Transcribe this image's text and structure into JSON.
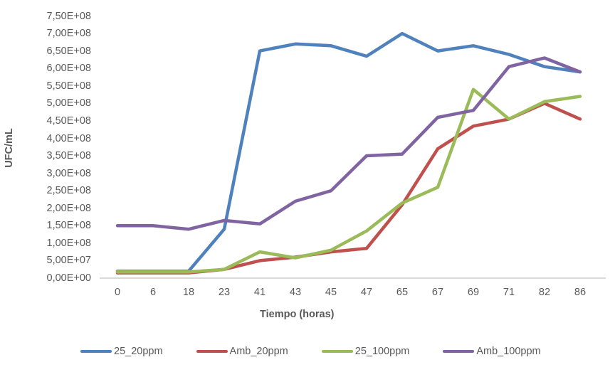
{
  "chart_data": {
    "type": "line",
    "title": "",
    "xlabel": "Tiempo (horas)",
    "ylabel": "UFC/mL",
    "ylim": [
      0,
      750000000
    ],
    "y_tick_step": 50000000,
    "grid": false,
    "legend_position": "bottom",
    "axis_line_color": "#D9D9D9",
    "text_color": "#595959",
    "categories": [
      "0",
      "6",
      "18",
      "23",
      "41",
      "43",
      "45",
      "47",
      "65",
      "67",
      "69",
      "71",
      "82",
      "86"
    ],
    "y_tick_labels_top_to_bottom": [
      "7,50E+08",
      "7,00E+08",
      "6,50E+08",
      "6,00E+08",
      "5,50E+08",
      "5,00E+08",
      "4,50E+08",
      "4,00E+08",
      "3,50E+08",
      "3,00E+08",
      "2,50E+08",
      "2,00E+08",
      "1,50E+08",
      "1,00E+08",
      "5,00E+07",
      "0,00E+00"
    ],
    "series": [
      {
        "name": "25_20ppm",
        "color": "#4F81BD",
        "values": [
          20000000,
          20000000,
          20000000,
          140000000,
          650000000,
          670000000,
          665000000,
          635000000,
          700000000,
          650000000,
          665000000,
          640000000,
          605000000,
          590000000
        ]
      },
      {
        "name": "Amb_20ppm",
        "color": "#C0504D",
        "values": [
          15000000,
          15000000,
          15000000,
          25000000,
          50000000,
          60000000,
          75000000,
          85000000,
          210000000,
          370000000,
          435000000,
          455000000,
          500000000,
          455000000
        ]
      },
      {
        "name": "25_100ppm",
        "color": "#9BBB59",
        "values": [
          18000000,
          18000000,
          18000000,
          25000000,
          75000000,
          58000000,
          80000000,
          135000000,
          215000000,
          260000000,
          540000000,
          455000000,
          505000000,
          520000000
        ]
      },
      {
        "name": "Amb_100ppm",
        "color": "#8064A2",
        "values": [
          150000000,
          150000000,
          140000000,
          165000000,
          155000000,
          220000000,
          250000000,
          350000000,
          355000000,
          460000000,
          480000000,
          605000000,
          630000000,
          590000000
        ]
      }
    ]
  }
}
